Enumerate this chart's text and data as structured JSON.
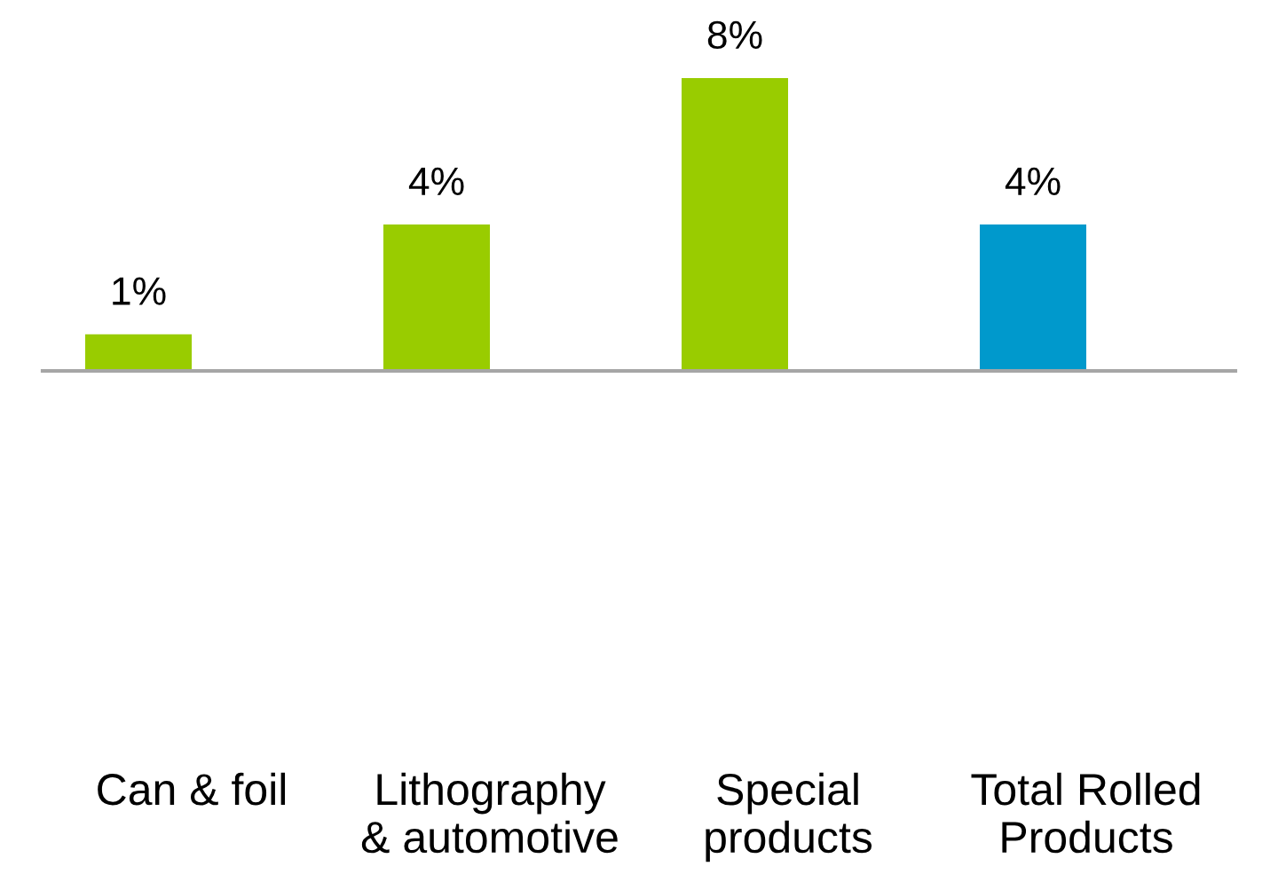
{
  "chart_data": {
    "type": "bar",
    "categories": [
      "Can & foil",
      "Lithography\n& automotive",
      "Special\nproducts",
      "Total Rolled\nProducts"
    ],
    "values": [
      1,
      4,
      8,
      4
    ],
    "colors": [
      "#99cc00",
      "#99cc00",
      "#99cc00",
      "#0099cc"
    ],
    "value_labels": [
      "1%",
      "4%",
      "8%",
      "4%"
    ]
  }
}
